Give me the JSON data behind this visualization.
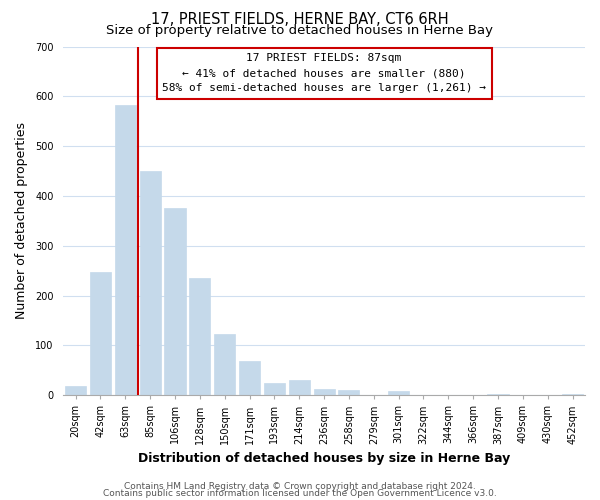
{
  "title": "17, PRIEST FIELDS, HERNE BAY, CT6 6RH",
  "subtitle": "Size of property relative to detached houses in Herne Bay",
  "xlabel": "Distribution of detached houses by size in Herne Bay",
  "ylabel": "Number of detached properties",
  "bar_labels": [
    "20sqm",
    "42sqm",
    "63sqm",
    "85sqm",
    "106sqm",
    "128sqm",
    "150sqm",
    "171sqm",
    "193sqm",
    "214sqm",
    "236sqm",
    "258sqm",
    "279sqm",
    "301sqm",
    "322sqm",
    "344sqm",
    "366sqm",
    "387sqm",
    "409sqm",
    "430sqm",
    "452sqm"
  ],
  "bar_values": [
    18,
    247,
    583,
    450,
    375,
    235,
    122,
    68,
    25,
    31,
    13,
    10,
    0,
    9,
    0,
    0,
    0,
    3,
    0,
    0,
    2
  ],
  "bar_color": "#c5d9ea",
  "vline_x": 2.5,
  "annotation_title": "17 PRIEST FIELDS: 87sqm",
  "annotation_line1": "← 41% of detached houses are smaller (880)",
  "annotation_line2": "58% of semi-detached houses are larger (1,261) →",
  "annotation_box_color": "#ffffff",
  "annotation_box_edgecolor": "#cc0000",
  "ylim": [
    0,
    700
  ],
  "yticks": [
    0,
    100,
    200,
    300,
    400,
    500,
    600,
    700
  ],
  "footer_line1": "Contains HM Land Registry data © Crown copyright and database right 2024.",
  "footer_line2": "Contains public sector information licensed under the Open Government Licence v3.0.",
  "background_color": "#ffffff",
  "grid_color": "#d0dff0",
  "title_fontsize": 10.5,
  "subtitle_fontsize": 9.5,
  "axis_label_fontsize": 9,
  "tick_fontsize": 7,
  "annotation_fontsize": 8,
  "footer_fontsize": 6.5
}
